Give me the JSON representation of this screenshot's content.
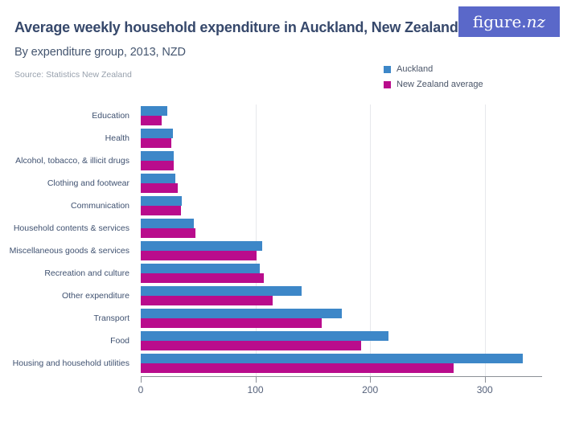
{
  "header": {
    "title": "Average weekly household expenditure in Auckland, New Zealand",
    "subtitle": "By expenditure group, 2013, NZD",
    "source": "Source: Statistics New Zealand",
    "logo": {
      "text_main": "figure.",
      "text_accent": "nz"
    }
  },
  "colors": {
    "auckland": "#3d87c8",
    "nz_average": "#b90c8c",
    "logo_background": "#5a68c9",
    "title_text": "#36486b"
  },
  "legend": {
    "items": [
      {
        "label": "Auckland",
        "color": "#3d87c8"
      },
      {
        "label": "New Zealand average",
        "color": "#b90c8c"
      }
    ]
  },
  "chart_data": {
    "type": "bar",
    "orientation": "horizontal",
    "title": "Average weekly household expenditure in Auckland, New Zealand",
    "subtitle": "By expenditure group, 2013, NZD",
    "source": "Source: Statistics New Zealand",
    "categories": [
      "Education",
      "Health",
      "Alcohol, tobacco, & illicit drugs",
      "Clothing and footwear",
      "Communication",
      "Household contents & services",
      "Miscellaneous goods & services",
      "Recreation and culture",
      "Other expenditure",
      "Transport",
      "Food",
      "Housing and household utilities"
    ],
    "series": [
      {
        "name": "Auckland",
        "color": "#3d87c8",
        "values": [
          23,
          28,
          29,
          30,
          36,
          46,
          106,
          104,
          140,
          175,
          216,
          333
        ]
      },
      {
        "name": "New Zealand average",
        "color": "#b90c8c",
        "values": [
          18,
          27,
          29,
          32,
          35,
          48,
          101,
          107,
          115,
          158,
          192,
          273
        ]
      }
    ],
    "xlabel": "",
    "ylabel": "",
    "xlim": [
      0,
      350
    ],
    "xticks": [
      0,
      100,
      200,
      300
    ],
    "grid": "vertical",
    "legend_position": "top-right"
  }
}
